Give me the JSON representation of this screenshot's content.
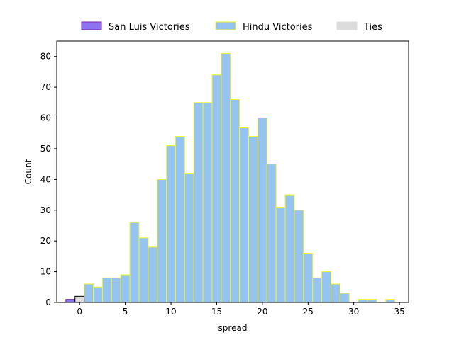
{
  "chart_data": {
    "type": "bar",
    "subtype": "histogram",
    "title": "",
    "xlabel": "spread",
    "ylabel": "Count",
    "xlim": [
      -2.5,
      36.0
    ],
    "ylim": [
      0,
      85
    ],
    "xticks": [
      0,
      5,
      10,
      15,
      20,
      25,
      30,
      35
    ],
    "yticks": [
      0,
      10,
      20,
      30,
      40,
      50,
      60,
      70,
      80
    ],
    "grid": false,
    "legend_position": "top-center, above plot",
    "bin_width": 1,
    "series": [
      {
        "name": "San Luis Victories",
        "color": "#8B74F0",
        "edgecolor": "#7B1FA2",
        "bins": [
          {
            "x": -1,
            "count": 1
          }
        ]
      },
      {
        "name": "Hindu Victories",
        "color": "#94C4EF",
        "edgecolor": "#F2F22A",
        "bins": [
          {
            "x": 1,
            "count": 6
          },
          {
            "x": 2,
            "count": 5
          },
          {
            "x": 3,
            "count": 8
          },
          {
            "x": 4,
            "count": 8
          },
          {
            "x": 5,
            "count": 9
          },
          {
            "x": 6,
            "count": 26
          },
          {
            "x": 7,
            "count": 21
          },
          {
            "x": 8,
            "count": 18
          },
          {
            "x": 9,
            "count": 40
          },
          {
            "x": 10,
            "count": 51
          },
          {
            "x": 11,
            "count": 54
          },
          {
            "x": 12,
            "count": 42
          },
          {
            "x": 13,
            "count": 65
          },
          {
            "x": 14,
            "count": 65
          },
          {
            "x": 15,
            "count": 74
          },
          {
            "x": 16,
            "count": 81
          },
          {
            "x": 17,
            "count": 66
          },
          {
            "x": 18,
            "count": 57
          },
          {
            "x": 19,
            "count": 54
          },
          {
            "x": 20,
            "count": 60
          },
          {
            "x": 21,
            "count": 45
          },
          {
            "x": 22,
            "count": 31
          },
          {
            "x": 23,
            "count": 35
          },
          {
            "x": 24,
            "count": 30
          },
          {
            "x": 25,
            "count": 16
          },
          {
            "x": 26,
            "count": 8
          },
          {
            "x": 27,
            "count": 10
          },
          {
            "x": 28,
            "count": 6
          },
          {
            "x": 29,
            "count": 3
          },
          {
            "x": 31,
            "count": 1
          },
          {
            "x": 32,
            "count": 1
          },
          {
            "x": 34,
            "count": 1
          }
        ]
      },
      {
        "name": "Ties",
        "color": "#DCDCDC",
        "edgecolor": "#000000",
        "bins": [
          {
            "x": 0,
            "count": 2
          }
        ]
      }
    ]
  }
}
